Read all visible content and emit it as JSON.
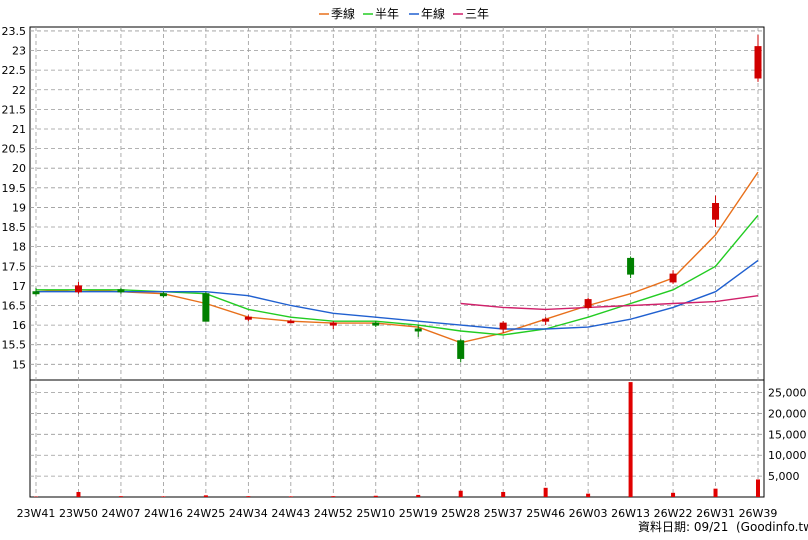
{
  "chart_data": [
    {
      "type": "candlestick",
      "title": "",
      "legend": {
        "placement": "top-center",
        "items": [
          {
            "name": "季線",
            "color": "#E8701B"
          },
          {
            "name": "半年",
            "color": "#22CC22"
          },
          {
            "name": "年線",
            "color": "#2060D0"
          },
          {
            "name": "三年",
            "color": "#D0206A"
          }
        ]
      },
      "ylim": [
        14.6,
        23.6
      ],
      "yticks": [
        "15",
        "15.5",
        "16",
        "16.5",
        "17",
        "17.5",
        "18",
        "18.5",
        "19",
        "19.5",
        "20",
        "20.5",
        "21",
        "21.5",
        "22",
        "22.5",
        "23",
        "23.5"
      ],
      "xticks": [
        "23W41",
        "23W50",
        "24W07",
        "24W16",
        "24W25",
        "24W34",
        "24W43",
        "24W52",
        "25W10",
        "25W19",
        "25W28",
        "25W37",
        "25W46",
        "26W03",
        "26W13",
        "26W22",
        "26W31",
        "26W39"
      ],
      "grid": true,
      "ohlc_samples": [
        {
          "x": "23W41",
          "o": 16.85,
          "h": 16.95,
          "l": 16.75,
          "c": 16.8
        },
        {
          "x": "23W50",
          "o": 16.85,
          "h": 17.1,
          "l": 16.8,
          "c": 17.0
        },
        {
          "x": "24W07",
          "o": 16.9,
          "h": 16.95,
          "l": 16.8,
          "c": 16.85
        },
        {
          "x": "24W16",
          "o": 16.8,
          "h": 16.85,
          "l": 16.7,
          "c": 16.75
        },
        {
          "x": "24W25",
          "o": 16.8,
          "h": 16.85,
          "l": 16.1,
          "c": 16.1
        },
        {
          "x": "24W34",
          "o": 16.15,
          "h": 16.25,
          "l": 16.1,
          "c": 16.2
        },
        {
          "x": "24W43",
          "o": 16.1,
          "h": 16.15,
          "l": 16.05,
          "c": 16.1
        },
        {
          "x": "24W52",
          "o": 16.0,
          "h": 16.1,
          "l": 15.9,
          "c": 16.05
        },
        {
          "x": "25W10",
          "o": 16.05,
          "h": 16.1,
          "l": 15.95,
          "c": 16.0
        },
        {
          "x": "25W19",
          "o": 15.9,
          "h": 16.0,
          "l": 15.7,
          "c": 15.85
        },
        {
          "x": "25W28",
          "o": 15.6,
          "h": 15.65,
          "l": 15.05,
          "c": 15.15
        },
        {
          "x": "25W37",
          "o": 15.9,
          "h": 16.1,
          "l": 15.8,
          "c": 16.05
        },
        {
          "x": "25W46",
          "o": 16.1,
          "h": 16.2,
          "l": 16.0,
          "c": 16.15
        },
        {
          "x": "26W03",
          "o": 16.45,
          "h": 16.7,
          "l": 16.4,
          "c": 16.65
        },
        {
          "x": "26W13",
          "o": 17.7,
          "h": 17.75,
          "l": 17.2,
          "c": 17.3
        },
        {
          "x": "26W22",
          "o": 17.1,
          "h": 17.4,
          "l": 17.05,
          "c": 17.3
        },
        {
          "x": "26W31",
          "o": 18.7,
          "h": 19.3,
          "l": 18.5,
          "c": 19.1
        },
        {
          "x": "26W39",
          "o": 22.3,
          "h": 23.4,
          "l": 22.2,
          "c": 23.1
        }
      ],
      "moving_averages": {
        "季線": [
          16.85,
          16.9,
          16.85,
          16.8,
          16.55,
          16.2,
          16.1,
          16.05,
          16.05,
          15.95,
          15.55,
          15.8,
          16.15,
          16.5,
          16.8,
          17.2,
          18.3,
          19.9
        ],
        "半年": [
          16.9,
          16.9,
          16.9,
          16.85,
          16.8,
          16.4,
          16.2,
          16.1,
          16.1,
          16.0,
          15.85,
          15.75,
          15.9,
          16.2,
          16.55,
          16.9,
          17.5,
          18.8
        ],
        "年線": [
          16.85,
          16.85,
          16.85,
          16.85,
          16.85,
          16.75,
          16.5,
          16.3,
          16.2,
          16.1,
          16.0,
          15.9,
          15.9,
          15.95,
          16.15,
          16.45,
          16.85,
          17.65
        ],
        "三年": [
          null,
          null,
          null,
          null,
          null,
          null,
          null,
          null,
          null,
          null,
          16.55,
          16.45,
          16.4,
          16.45,
          16.5,
          16.55,
          16.6,
          16.75
        ]
      }
    },
    {
      "type": "bar",
      "series": [
        {
          "name": "",
          "color": "#E00000"
        }
      ],
      "ylim": [
        0,
        28000
      ],
      "yticks": [
        "5,000",
        "10,000",
        "15,000",
        "20,000",
        "25,000"
      ],
      "categories": [
        "23W41",
        "23W50",
        "24W07",
        "24W16",
        "24W25",
        "24W34",
        "24W43",
        "24W52",
        "25W10",
        "25W19",
        "25W28",
        "25W37",
        "25W46",
        "26W03",
        "26W13",
        "26W22",
        "26W31",
        "26W39"
      ],
      "values": [
        100,
        1200,
        200,
        150,
        400,
        200,
        150,
        200,
        300,
        500,
        1500,
        1200,
        2200,
        800,
        27500,
        1000,
        2000,
        4200
      ]
    }
  ],
  "footer": {
    "date_text": "資料日期: 09/21",
    "source_text": "(Goodinfo.tw)"
  }
}
